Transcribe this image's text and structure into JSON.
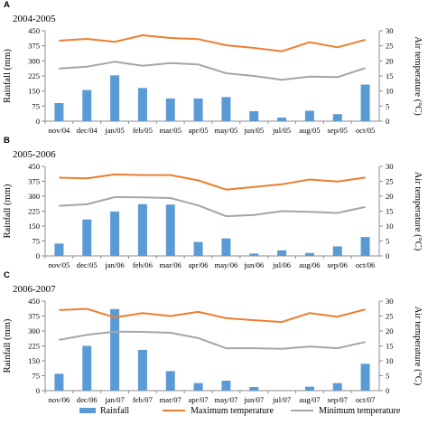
{
  "chart_data": [
    {
      "type": "bar",
      "panel_label": "A",
      "title": "2004-2005",
      "ylabel": "Rainfall (mm)",
      "y2label": "Air temperature (°C)",
      "ylim": [
        0,
        450
      ],
      "y2lim": [
        0,
        30
      ],
      "yticks": [
        "0",
        "75",
        "150",
        "225",
        "300",
        "375",
        "450"
      ],
      "y2ticks": [
        "0",
        "5",
        "10",
        "15",
        "20",
        "25",
        "30"
      ],
      "categories": [
        "nov/04",
        "dec/04",
        "jan/05",
        "feb/05",
        "mar/05",
        "apr/05",
        "may/05",
        "jun/05",
        "jul/05",
        "aug/05",
        "sep/05",
        "oct/05"
      ],
      "series": [
        {
          "name": "Rainfall",
          "type": "bar",
          "axis": "left",
          "values": [
            90,
            155,
            228,
            165,
            113,
            113,
            120,
            50,
            18,
            52,
            35,
            182
          ]
        },
        {
          "name": "Maximum temperature",
          "type": "line",
          "axis": "right",
          "values": [
            26.7,
            27.3,
            26.3,
            28.5,
            27.6,
            27.2,
            25.2,
            24.3,
            23.2,
            26.2,
            24.5,
            27.0
          ]
        },
        {
          "name": "Minimum temperature",
          "type": "line",
          "axis": "right",
          "values": [
            17.5,
            18.1,
            19.7,
            18.4,
            19.3,
            18.8,
            15.9,
            15.0,
            13.7,
            14.8,
            14.6,
            17.6
          ]
        }
      ]
    },
    {
      "type": "bar",
      "panel_label": "B",
      "title": "2005-2006",
      "ylabel": "Rainfall (mm)",
      "y2label": "Air temperature (°C)",
      "ylim": [
        0,
        450
      ],
      "y2lim": [
        0,
        30
      ],
      "yticks": [
        "0",
        "75",
        "150",
        "225",
        "300",
        "375",
        "450"
      ],
      "y2ticks": [
        "0",
        "5",
        "10",
        "15",
        "20",
        "25",
        "30"
      ],
      "categories": [
        "nov/05",
        "dec/05",
        "jan/06",
        "feb/06",
        "mar/06",
        "apr/06",
        "may/06",
        "jun/06",
        "jul/06",
        "aug/06",
        "sep/06",
        "oct/06"
      ],
      "series": [
        {
          "name": "Rainfall",
          "type": "bar",
          "axis": "left",
          "values": [
            62,
            183,
            223,
            260,
            258,
            70,
            88,
            12,
            28,
            15,
            48,
            95
          ]
        },
        {
          "name": "Maximum temperature",
          "type": "line",
          "axis": "right",
          "values": [
            26.2,
            26.0,
            27.3,
            27.1,
            27.1,
            25.3,
            22.2,
            23.1,
            24.0,
            25.6,
            24.9,
            26.3
          ]
        },
        {
          "name": "Minimum temperature",
          "type": "line",
          "axis": "right",
          "values": [
            16.8,
            17.3,
            19.7,
            19.6,
            19.4,
            16.9,
            13.3,
            13.7,
            15.0,
            14.8,
            14.4,
            16.4
          ]
        }
      ]
    },
    {
      "type": "bar",
      "panel_label": "C",
      "title": "2006-2007",
      "ylabel": "Rainfall (mm)",
      "y2label": "Air temperature (°C)",
      "ylim": [
        0,
        450
      ],
      "y2lim": [
        0,
        30
      ],
      "yticks": [
        "0",
        "75",
        "150",
        "225",
        "300",
        "375",
        "450"
      ],
      "y2ticks": [
        "0",
        "5",
        "10",
        "15",
        "20",
        "25",
        "30"
      ],
      "categories": [
        "nov/06",
        "dec/06",
        "jan/07",
        "feb/07",
        "mar/07",
        "apr/07",
        "may/07",
        "jun/07",
        "jul/07",
        "aug/07",
        "sep/07",
        "oct/07"
      ],
      "series": [
        {
          "name": "Rainfall",
          "type": "bar",
          "axis": "left",
          "values": [
            85,
            225,
            410,
            205,
            98,
            38,
            50,
            18,
            0,
            20,
            38,
            135
          ]
        },
        {
          "name": "Maximum temperature",
          "type": "line",
          "axis": "right",
          "values": [
            27.0,
            27.4,
            24.5,
            26.0,
            25.0,
            26.4,
            24.3,
            23.6,
            23.0,
            26.0,
            24.8,
            27.2
          ]
        },
        {
          "name": "Minimum temperature",
          "type": "line",
          "axis": "right",
          "values": [
            17.0,
            18.7,
            19.8,
            19.7,
            19.4,
            17.6,
            14.2,
            14.2,
            14.0,
            14.8,
            14.2,
            16.3
          ]
        }
      ]
    }
  ],
  "legend": {
    "placement": "bottom",
    "items": [
      {
        "label": "Rainfall",
        "marker": "bar",
        "color": "#5b9bd5"
      },
      {
        "label": "Maximum temperature",
        "marker": "line",
        "color": "#ed7d31"
      },
      {
        "label": "Minimum temperature",
        "marker": "line",
        "color": "#a5a5a5"
      }
    ]
  },
  "colors": {
    "bar": "#5b9bd5",
    "max_line": "#ed7d31",
    "min_line": "#a5a5a5",
    "axis": "#8c8c8c"
  }
}
